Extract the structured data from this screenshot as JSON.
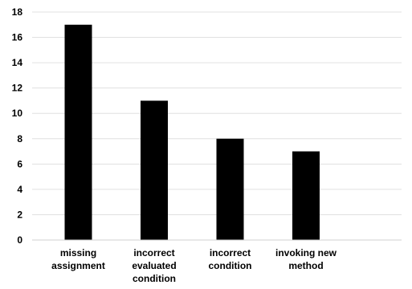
{
  "chart_data": {
    "type": "bar",
    "categories": [
      [
        "missing",
        "assignment"
      ],
      [
        "incorrect",
        "evaluated",
        "condition"
      ],
      [
        "incorrect",
        "condition"
      ],
      [
        "invoking new",
        "method"
      ]
    ],
    "values": [
      17,
      11,
      8,
      7
    ],
    "yticks": [
      "0",
      "2",
      "4",
      "6",
      "8",
      "10",
      "12",
      "14",
      "16",
      "18"
    ],
    "ylim": [
      0,
      18
    ],
    "grid": true,
    "bar_color": "#000000"
  }
}
